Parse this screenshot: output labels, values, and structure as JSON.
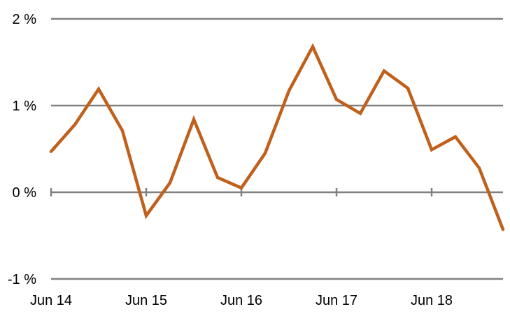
{
  "chart_data": {
    "type": "line",
    "title": "",
    "xlabel": "",
    "ylabel": "",
    "ylim": [
      -1,
      2
    ],
    "yticks": [
      {
        "value": -1,
        "label": "-1 %"
      },
      {
        "value": 0,
        "label": "0 %"
      },
      {
        "value": 1,
        "label": "1 %"
      },
      {
        "value": 2,
        "label": "2 %"
      }
    ],
    "xticks": [
      {
        "index": 0,
        "label": "Jun 14"
      },
      {
        "index": 4,
        "label": "Jun 15"
      },
      {
        "index": 8,
        "label": "Jun 16"
      },
      {
        "index": 12,
        "label": "Jun 17"
      },
      {
        "index": 16,
        "label": "Jun 18"
      }
    ],
    "grid": true,
    "legend": "none",
    "series": [
      {
        "color": "#C0601C",
        "values": [
          0.47,
          0.78,
          1.19,
          0.71,
          -0.27,
          0.11,
          0.84,
          0.17,
          0.05,
          0.45,
          1.17,
          1.68,
          1.07,
          0.91,
          1.4,
          1.2,
          0.49,
          0.64,
          0.28,
          -0.43
        ]
      }
    ]
  }
}
